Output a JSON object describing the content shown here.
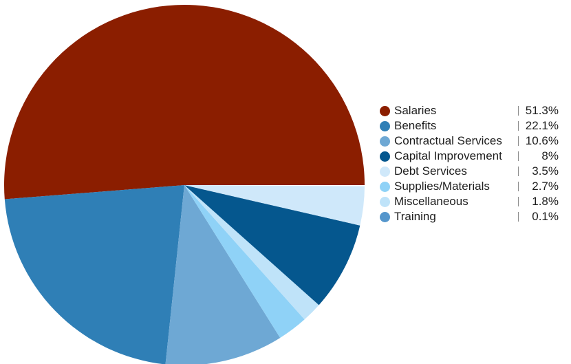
{
  "chart_data": {
    "type": "pie",
    "title": "",
    "categories": [
      "Salaries",
      "Benefits",
      "Contractual Services",
      "Capital Improvement",
      "Debt Services",
      "Supplies/Materials",
      "Miscellaneous",
      "Training"
    ],
    "values": [
      51.3,
      22.1,
      10.6,
      8,
      3.5,
      2.7,
      1.8,
      0.1
    ],
    "value_labels": [
      "51.3%",
      "22.1%",
      "10.6%",
      "8%",
      "3.5%",
      "2.7%",
      "1.8%",
      "0.1%"
    ],
    "colors": [
      "#8b1e00",
      "#2f7fb6",
      "#6ea8d4",
      "#05578e",
      "#cfe8fa",
      "#8fd2f7",
      "#bfe3f9",
      "#5596cc"
    ],
    "slice_order_counterclockwise_from_right": [
      "Salaries",
      "Benefits",
      "Contractual Services",
      "Supplies/Materials",
      "Miscellaneous",
      "Capital Improvement",
      "Debt Services"
    ],
    "legend_position": "right",
    "unit": "%"
  }
}
